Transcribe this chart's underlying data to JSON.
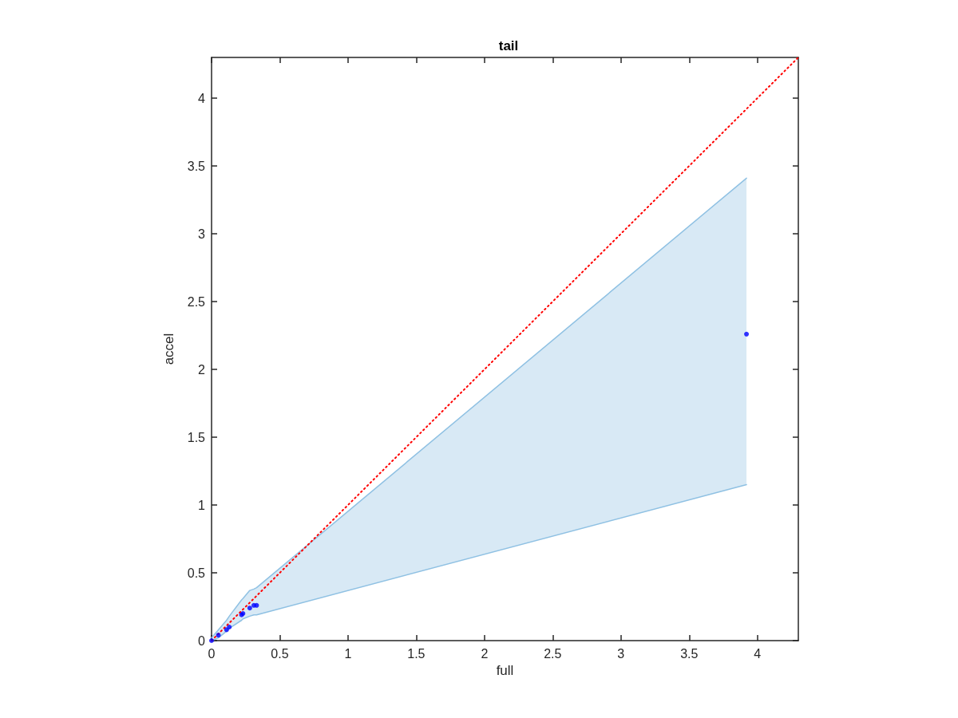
{
  "chart_data": {
    "type": "scatter",
    "title": "tail",
    "xlabel": "full",
    "ylabel": "accel",
    "xlim": [
      0,
      4.3
    ],
    "ylim": [
      0,
      4.3
    ],
    "xticks": [
      0,
      0.5,
      1,
      1.5,
      2,
      2.5,
      3,
      3.5,
      4
    ],
    "yticks": [
      0,
      0.5,
      1,
      1.5,
      2,
      2.5,
      3,
      3.5,
      4
    ],
    "grid": false,
    "series": [
      {
        "type": "line",
        "color": "#8fc1e3",
        "marker": "none",
        "x": [
          0,
          0.05,
          0.11,
          0.13,
          0.22,
          0.23,
          0.28,
          0.31,
          0.33,
          3.92
        ],
        "values": [
          0.02,
          0.08,
          0.15,
          0.18,
          0.3,
          0.31,
          0.37,
          0.38,
          0.39,
          3.41
        ],
        "lower": [
          0,
          0.02,
          0.07,
          0.09,
          0.15,
          0.16,
          0.18,
          0.19,
          0.19,
          1.15
        ],
        "upper": [
          0.02,
          0.08,
          0.15,
          0.18,
          0.3,
          0.31,
          0.37,
          0.38,
          0.39,
          3.41
        ]
      },
      {
        "type": "line",
        "color": "#8fc1e3",
        "marker": "none",
        "x": [
          0,
          0.05,
          0.11,
          0.13,
          0.22,
          0.23,
          0.28,
          0.31,
          0.33,
          3.92
        ],
        "values": [
          0,
          0.02,
          0.07,
          0.09,
          0.15,
          0.16,
          0.18,
          0.19,
          0.19,
          1.15
        ]
      },
      {
        "color": "#0000ff",
        "marker": "circle",
        "x": [
          0,
          0.05,
          0.11,
          0.13,
          0.22,
          0.23,
          0.28,
          0.31,
          0.33,
          3.92
        ],
        "values": [
          0,
          0.04,
          0.08,
          0.1,
          0.19,
          0.2,
          0.24,
          0.26,
          0.26,
          2.26
        ]
      },
      {
        "type": "line",
        "color": "#ff0000",
        "marker": "none",
        "line_style": "dotted",
        "x": [
          0,
          4.3
        ],
        "values": [
          0,
          4.3
        ]
      }
    ]
  }
}
